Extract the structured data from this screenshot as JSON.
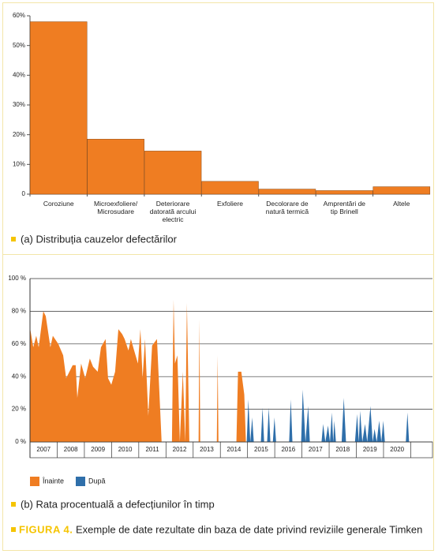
{
  "chart_data": [
    {
      "type": "bar",
      "caption": "(a) Distribuția cauzelor defectărilor",
      "categories": [
        "Coroziune",
        "Microexfoliere/ Microsudare",
        "Deteriorare datorată arcului electric",
        "Exfoliere",
        "Decolorare de natură termică",
        "Amprentări de tip Brinell",
        "Altele"
      ],
      "values": [
        58,
        18.5,
        14.5,
        4.3,
        1.7,
        1.2,
        2.5
      ],
      "color": "#ef7d22",
      "ylim": [
        0,
        60
      ],
      "yticks": [
        0,
        {
          "value": 10,
          "label": "10%"
        },
        {
          "value": 20,
          "label": "20%"
        },
        {
          "value": 30,
          "label": "30%"
        },
        {
          "value": 40,
          "label": "40%"
        },
        {
          "value": 50,
          "label": "50%"
        },
        {
          "value": 60,
          "label": "60%"
        }
      ]
    },
    {
      "type": "area",
      "caption": "(b) Rata procentuală a defecțiunilor în timp",
      "xlim": [
        2007,
        2021.8
      ],
      "ylim": [
        0,
        100
      ],
      "xticks": [
        {
          "value": 2007.5,
          "label": "2007"
        },
        {
          "value": 2008.5,
          "label": "2008"
        },
        {
          "value": 2009.5,
          "label": "2009"
        },
        {
          "value": 2010.5,
          "label": "2010"
        },
        {
          "value": 2011.5,
          "label": "2011"
        },
        {
          "value": 2012.5,
          "label": "2012"
        },
        {
          "value": 2013.5,
          "label": "2013"
        },
        {
          "value": 2014.5,
          "label": "2014"
        },
        {
          "value": 2015.5,
          "label": "2015"
        },
        {
          "value": 2016.5,
          "label": "2016"
        },
        {
          "value": 2017.5,
          "label": "2017"
        },
        {
          "value": 2018.5,
          "label": "2018"
        },
        {
          "value": 2019.5,
          "label": "2019"
        },
        {
          "value": 2020.5,
          "label": "2020"
        }
      ],
      "yticks": [
        {
          "value": 0,
          "label": "0 %"
        },
        {
          "value": 20,
          "label": "20 %"
        },
        {
          "value": 40,
          "label": "40 %"
        },
        {
          "value": 60,
          "label": "60 %"
        },
        {
          "value": 80,
          "label": "80 %"
        },
        {
          "value": 100,
          "label": "100 %"
        }
      ],
      "grid": true,
      "series": [
        {
          "name": "Înainte",
          "color": "#ef7d22",
          "x": [
            2007.0,
            2007.12,
            2007.23,
            2007.32,
            2007.49,
            2007.58,
            2007.75,
            2007.84,
            2008.04,
            2008.22,
            2008.33,
            2008.57,
            2008.68,
            2008.74,
            2008.88,
            2009.03,
            2009.2,
            2009.32,
            2009.49,
            2009.61,
            2009.78,
            2009.87,
            2009.99,
            2010.13,
            2010.25,
            2010.39,
            2010.48,
            2010.62,
            2010.71,
            2010.83,
            2010.97,
            2011.06,
            2011.14,
            2011.23,
            2011.35,
            2011.49,
            2011.67,
            2011.84,
            2012.22,
            2012.28,
            2012.33,
            2012.42,
            2012.51,
            2012.62,
            2012.71,
            2012.77,
            2012.86,
            2013.2,
            2013.23,
            2013.26,
            2013.87,
            2013.9,
            2013.93,
            2014.59,
            2014.65,
            2014.77,
            2014.88,
            2014.94
          ],
          "values": [
            70,
            58,
            65,
            58,
            80,
            77,
            58,
            65,
            60,
            53,
            39,
            47,
            47,
            27,
            48,
            39,
            51,
            46,
            43,
            58,
            63,
            39,
            35,
            43,
            69,
            66,
            63,
            56,
            63,
            56,
            48,
            69,
            39,
            63,
            16,
            59,
            63,
            0,
            0,
            87,
            48,
            53,
            0,
            43,
            0,
            85,
            0,
            0,
            75,
            0,
            0,
            53,
            0,
            0,
            43,
            43,
            29,
            0
          ]
        },
        {
          "name": "După",
          "color": "#2f6faa",
          "x": [
            2014.97,
            2015.03,
            2015.1,
            2015.17,
            2015.23,
            2015.49,
            2015.55,
            2015.61,
            2015.72,
            2015.78,
            2015.84,
            2015.93,
            2015.99,
            2016.05,
            2016.53,
            2016.59,
            2016.65,
            2016.97,
            2017.03,
            2017.13,
            2017.23,
            2017.29,
            2017.72,
            2017.78,
            2017.86,
            2017.96,
            2018.03,
            2018.1,
            2018.15,
            2018.19,
            2018.25,
            2018.46,
            2018.54,
            2018.62,
            2018.95,
            2019.03,
            2019.09,
            2019.14,
            2019.22,
            2019.32,
            2019.4,
            2019.52,
            2019.6,
            2019.67,
            2019.75,
            2019.84,
            2019.92,
            2019.99,
            2020.05,
            2020.82,
            2020.88,
            2020.94
          ],
          "values": [
            0,
            26,
            0,
            15,
            0,
            0,
            21,
            0,
            0,
            21,
            0,
            0,
            15,
            0,
            0,
            26,
            0,
            0,
            32,
            0,
            22,
            0,
            0,
            11,
            0,
            10,
            0,
            18,
            0,
            13,
            0,
            0,
            27,
            0,
            0,
            17,
            0,
            19,
            0,
            11,
            0,
            22,
            0,
            8,
            0,
            13,
            0,
            13,
            0,
            0,
            18,
            0
          ]
        }
      ]
    }
  ],
  "figure_caption": {
    "label": "FIGURA 4.",
    "text": "Exemple de date rezultate din baza de date privind reviziile generale Timken"
  }
}
